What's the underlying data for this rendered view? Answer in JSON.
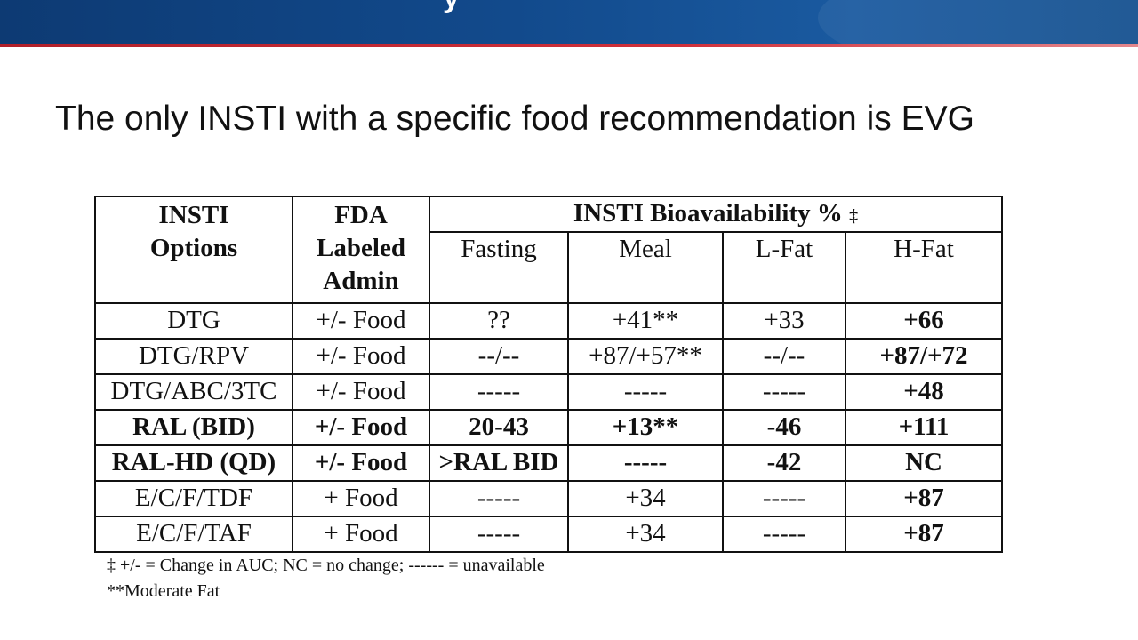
{
  "slide": {
    "heading": "The only INSTI with a specific food recommendation is EVG",
    "banner_fragment": "y"
  },
  "table": {
    "col_headers": {
      "insti": "INSTI Options",
      "fda": "FDA Labeled Admin",
      "group": "INSTI Bioavailability %",
      "group_marker": "‡",
      "fasting": "Fasting",
      "meal": "Meal",
      "lfat": "L-Fat",
      "hfat": "H-Fat"
    },
    "rows": [
      {
        "insti": "DTG",
        "fda": "+/- Food",
        "fasting": "??",
        "meal": "+41**",
        "lfat": "+33",
        "hfat": "+66",
        "bold": false
      },
      {
        "insti": "DTG/RPV",
        "fda": "+/- Food",
        "fasting": "--/--",
        "meal": "+87/+57**",
        "lfat": "--/--",
        "hfat": "+87/+72",
        "bold": false
      },
      {
        "insti": "DTG/ABC/3TC",
        "fda": "+/- Food",
        "fasting": "-----",
        "meal": "-----",
        "lfat": "-----",
        "hfat": "+48",
        "bold": false
      },
      {
        "insti": "RAL (BID)",
        "fda": "+/- Food",
        "fasting": "20-43",
        "meal": "+13**",
        "lfat": "-46",
        "hfat": "+111",
        "bold": true
      },
      {
        "insti": "RAL-HD (QD)",
        "fda": "+/- Food",
        "fasting": ">RAL BID",
        "meal": "-----",
        "lfat": "-42",
        "hfat": "NC",
        "bold": true
      },
      {
        "insti": "E/C/F/TDF",
        "fda": "+ Food",
        "fasting": "-----",
        "meal": "+34",
        "lfat": "-----",
        "hfat": "+87",
        "bold": false
      },
      {
        "insti": "E/C/F/TAF",
        "fda": "+ Food",
        "fasting": "-----",
        "meal": "+34",
        "lfat": "-----",
        "hfat": "+87",
        "bold": false
      }
    ]
  },
  "footnotes": [
    "‡ +/- = Change in AUC; NC = no change;  ------ = unavailable",
    "**Moderate Fat"
  ],
  "colors": {
    "banner": "#124a8c",
    "banner_rule": "#c0252f",
    "text": "#111111"
  }
}
